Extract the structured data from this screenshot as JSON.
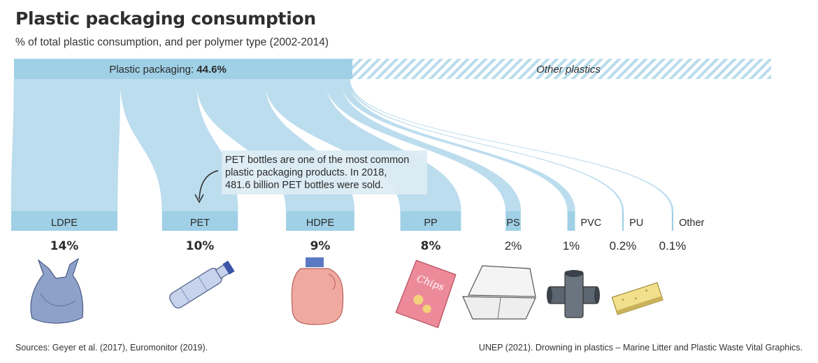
{
  "chart_data": {
    "type": "sankey",
    "title": "Plastic packaging consumption",
    "subtitle": "% of total plastic consumption, and per polymer type (2002-2014)",
    "total": {
      "label_prefix": "Plastic packaging: ",
      "label_value": "44.6%",
      "value": 44.6
    },
    "other_label": "Other plastics",
    "categories": [
      {
        "name": "LDPE",
        "value": 14,
        "value_label": "14%",
        "icon": "plastic-bag-icon",
        "emphasis": true
      },
      {
        "name": "PET",
        "value": 10,
        "value_label": "10%",
        "icon": "plastic-bottle-icon",
        "emphasis": true
      },
      {
        "name": "HDPE",
        "value": 9,
        "value_label": "9%",
        "icon": "detergent-jug-icon",
        "emphasis": true
      },
      {
        "name": "PP",
        "value": 8,
        "value_label": "8%",
        "icon": "chips-bag-icon",
        "emphasis": true
      },
      {
        "name": "PS",
        "value": 2,
        "value_label": "2%",
        "icon": "foam-container-icon",
        "emphasis": false
      },
      {
        "name": "PVC",
        "value": 1,
        "value_label": "1%",
        "icon": "pvc-pipe-icon",
        "emphasis": false
      },
      {
        "name": "PU",
        "value": 0.2,
        "value_label": "0.2%",
        "icon": "sponge-icon",
        "emphasis": false
      },
      {
        "name": "Other",
        "value": 0.1,
        "value_label": "0.1%",
        "icon": "",
        "emphasis": false
      }
    ],
    "annotation": {
      "target": "PET",
      "lines": [
        "PET bottles are one of the most common",
        "plastic packaging products. In 2018,",
        "481.6 billion PET bottles were sold."
      ]
    },
    "colors": {
      "bar": "#9fd0e6",
      "flow": "#bcddee",
      "hatch": "#b8dcec",
      "annotation_bg": "#dcecf4"
    }
  },
  "footer": {
    "sources": "Sources: Geyer et al. (2017), Euromonitor (2019).",
    "credit": "UNEP (2021). Drowning in plastics – Marine Litter and Plastic Waste Vital Graphics."
  }
}
